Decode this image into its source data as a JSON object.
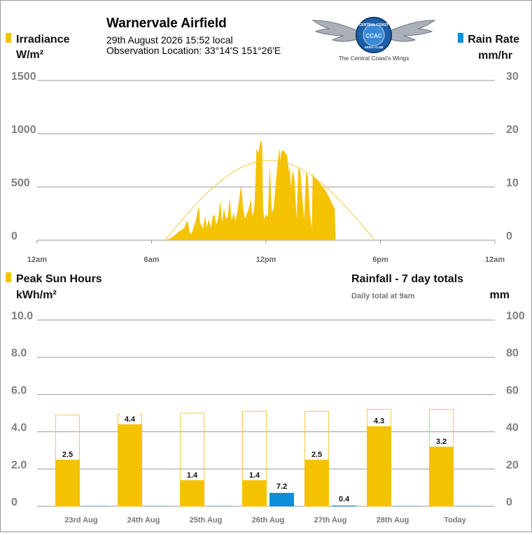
{
  "header": {
    "site_name": "Warnervale Airfield",
    "datetime": "29th August 2026  15:52 local",
    "location": "Observation Location: 33°14'S 151°26'E"
  },
  "logo": {
    "ring_top_text": "CENTRAL COAST",
    "ring_bottom_text": "AERO CLUB",
    "monogram": "CCAC",
    "tagline": "The Central Coast's Wings"
  },
  "colors": {
    "irradiance": "#f5c200",
    "rain": "#0a8fd8",
    "clear_sky": "#f5c842",
    "grid": "#9a9a9a",
    "rain_baseline": "#8fc3e4"
  },
  "chart_data": [
    {
      "type": "area",
      "left_legend": "Irradiance",
      "left_unit": "W/m²",
      "right_legend": "Rain Rate",
      "right_unit": "mm/hr",
      "left_ticks": [
        "1500",
        "1000",
        "500",
        "0"
      ],
      "right_ticks": [
        "30",
        "20",
        "10",
        "0"
      ],
      "x_ticks": [
        "12am",
        "6am",
        "12pm",
        "6pm",
        "12am"
      ],
      "ylim_left": [
        0,
        1500
      ],
      "ylim_right": [
        0,
        30
      ],
      "x_range_hours": [
        0,
        24
      ],
      "grid": true,
      "clear_sky_curve": {
        "start_hour": 6.7,
        "end_hour": 17.7,
        "peak": 750
      },
      "irradiance_series": [
        [
          6.7,
          0
        ],
        [
          6.9,
          10
        ],
        [
          7.1,
          30
        ],
        [
          7.3,
          60
        ],
        [
          7.5,
          90
        ],
        [
          7.7,
          110
        ],
        [
          7.8,
          160
        ],
        [
          7.9,
          180
        ],
        [
          8.0,
          70
        ],
        [
          8.1,
          60
        ],
        [
          8.2,
          120
        ],
        [
          8.3,
          170
        ],
        [
          8.4,
          260
        ],
        [
          8.5,
          320
        ],
        [
          8.55,
          130
        ],
        [
          8.6,
          170
        ],
        [
          8.7,
          100
        ],
        [
          8.8,
          230
        ],
        [
          8.9,
          120
        ],
        [
          9.0,
          200
        ],
        [
          9.1,
          110
        ],
        [
          9.2,
          220
        ],
        [
          9.3,
          240
        ],
        [
          9.4,
          150
        ],
        [
          9.5,
          210
        ],
        [
          9.6,
          370
        ],
        [
          9.7,
          170
        ],
        [
          9.8,
          300
        ],
        [
          9.9,
          200
        ],
        [
          10.0,
          220
        ],
        [
          10.1,
          400
        ],
        [
          10.2,
          180
        ],
        [
          10.3,
          260
        ],
        [
          10.4,
          180
        ],
        [
          10.5,
          270
        ],
        [
          10.6,
          390
        ],
        [
          10.7,
          520
        ],
        [
          10.8,
          300
        ],
        [
          10.9,
          200
        ],
        [
          11.0,
          250
        ],
        [
          11.1,
          300
        ],
        [
          11.2,
          380
        ],
        [
          11.3,
          220
        ],
        [
          11.4,
          340
        ],
        [
          11.5,
          860
        ],
        [
          11.6,
          820
        ],
        [
          11.7,
          920
        ],
        [
          11.75,
          940
        ],
        [
          11.8,
          880
        ],
        [
          11.85,
          300
        ],
        [
          11.9,
          200
        ],
        [
          12.0,
          240
        ],
        [
          12.1,
          220
        ],
        [
          12.2,
          720
        ],
        [
          12.3,
          260
        ],
        [
          12.4,
          300
        ],
        [
          12.5,
          500
        ],
        [
          12.6,
          720
        ],
        [
          12.7,
          870
        ],
        [
          12.75,
          750
        ],
        [
          12.8,
          830
        ],
        [
          12.9,
          850
        ],
        [
          13.0,
          820
        ],
        [
          13.1,
          800
        ],
        [
          13.2,
          640
        ],
        [
          13.25,
          700
        ],
        [
          13.3,
          500
        ],
        [
          13.4,
          660
        ],
        [
          13.5,
          560
        ],
        [
          13.6,
          200
        ],
        [
          13.7,
          680
        ],
        [
          13.8,
          650
        ],
        [
          13.9,
          400
        ],
        [
          14.0,
          200
        ],
        [
          14.1,
          640
        ],
        [
          14.2,
          600
        ],
        [
          14.3,
          250
        ],
        [
          14.4,
          100
        ],
        [
          14.45,
          640
        ],
        [
          14.5,
          600
        ],
        [
          14.7,
          560
        ],
        [
          14.9,
          520
        ],
        [
          15.1,
          470
        ],
        [
          15.3,
          410
        ],
        [
          15.5,
          330
        ],
        [
          15.6,
          300
        ],
        [
          15.65,
          0
        ]
      ]
    },
    {
      "type": "bar",
      "left_legend": "Peak Sun Hours",
      "left_unit": "kWh/m²",
      "right_title": "Rainfall - 7 day totals",
      "right_subtitle": "Daily total at 9am",
      "right_unit": "mm",
      "left_ticks": [
        "10.0",
        "8.0",
        "6.0",
        "4.0",
        "2.0",
        "0"
      ],
      "right_ticks": [
        "100",
        "80",
        "60",
        "40",
        "20",
        "0"
      ],
      "ylim_left": [
        0,
        10
      ],
      "ylim_right": [
        0,
        100
      ],
      "grid": true,
      "categories": [
        "23rd Aug",
        "24th Aug",
        "25th Aug",
        "26th Aug",
        "27th Aug",
        "28th Aug",
        "Today"
      ],
      "peak_sun_hours": [
        2.5,
        4.4,
        1.4,
        1.4,
        2.5,
        4.3,
        3.2
      ],
      "peak_sun_labels": [
        "2.5",
        "4.4",
        "1.4",
        "1.4",
        "2.5",
        "4.3",
        "3.2"
      ],
      "clear_sky_potential": [
        4.9,
        4.95,
        5.0,
        5.1,
        5.1,
        5.2,
        5.2
      ],
      "rainfall": [
        0,
        0,
        0,
        7.2,
        0.4,
        0,
        0
      ],
      "rainfall_labels": [
        "",
        "",
        "",
        "7.2",
        "0.4",
        "",
        ""
      ]
    }
  ]
}
